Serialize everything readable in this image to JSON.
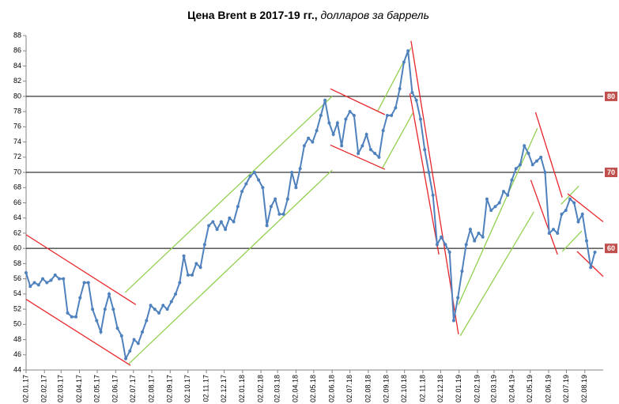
{
  "chart_data": {
    "type": "line",
    "title": "Цена Brent в 2017-19 гг.,",
    "subtitle": "долларов за баррель",
    "color": "#4f81bd",
    "markers": true,
    "x": [
      "02.01.17",
      "09.01.17",
      "16.01.17",
      "23.01.17",
      "30.01.17",
      "06.02.17",
      "13.02.17",
      "20.02.17",
      "27.02.17",
      "06.03.17",
      "13.03.17",
      "20.03.17",
      "27.03.17",
      "03.04.17",
      "10.04.17",
      "17.04.17",
      "24.04.17",
      "01.05.17",
      "08.05.17",
      "15.05.17",
      "22.05.17",
      "29.05.17",
      "05.06.17",
      "12.06.17",
      "19.06.17",
      "26.06.17",
      "03.07.17",
      "10.07.17",
      "17.07.17",
      "24.07.17",
      "31.07.17",
      "07.08.17",
      "14.08.17",
      "21.08.17",
      "28.08.17",
      "04.09.17",
      "11.09.17",
      "18.09.17",
      "25.09.17",
      "02.10.17",
      "09.10.17",
      "16.10.17",
      "23.10.17",
      "30.10.17",
      "06.11.17",
      "13.11.17",
      "20.11.17",
      "27.11.17",
      "04.12.17",
      "11.12.17",
      "18.12.17",
      "25.12.17",
      "01.01.18",
      "08.01.18",
      "15.01.18",
      "22.01.18",
      "29.01.18",
      "05.02.18",
      "12.02.18",
      "19.02.18",
      "26.02.18",
      "05.03.18",
      "12.03.18",
      "19.03.18",
      "26.03.18",
      "02.04.18",
      "09.04.18",
      "16.04.18",
      "23.04.18",
      "30.04.18",
      "07.05.18",
      "14.05.18",
      "21.05.18",
      "28.05.18",
      "04.06.18",
      "11.06.18",
      "18.06.18",
      "25.06.18",
      "02.07.18",
      "09.07.18",
      "16.07.18",
      "23.07.18",
      "30.07.18",
      "06.08.18",
      "13.08.18",
      "20.08.18",
      "27.08.18",
      "03.09.18",
      "10.09.18",
      "17.09.18",
      "24.09.18",
      "01.10.18",
      "08.10.18",
      "15.10.18",
      "22.10.18",
      "29.10.18",
      "05.11.18",
      "12.11.18",
      "19.11.18",
      "26.11.18",
      "03.12.18",
      "10.12.18",
      "17.12.18",
      "24.12.18",
      "31.12.18",
      "07.01.19",
      "14.01.19",
      "21.01.19",
      "28.01.19",
      "04.02.19",
      "11.02.19",
      "18.02.19",
      "25.02.19",
      "04.03.19",
      "11.03.19",
      "18.03.19",
      "25.03.19",
      "01.04.19",
      "08.04.19",
      "15.04.19",
      "22.04.19",
      "29.04.19",
      "06.05.19",
      "13.05.19",
      "20.05.19",
      "27.05.19",
      "03.06.19",
      "10.06.19",
      "17.06.19",
      "24.06.19",
      "01.07.19",
      "08.07.19",
      "15.07.19",
      "22.07.19",
      "29.07.19",
      "05.08.19",
      "12.08.19",
      "19.08.19"
    ],
    "values": [
      56.8,
      55.0,
      55.5,
      55.2,
      56.0,
      55.5,
      55.8,
      56.5,
      56.0,
      56.0,
      51.5,
      51.0,
      51.0,
      53.5,
      55.5,
      55.5,
      52.0,
      50.5,
      49.0,
      52.0,
      54.0,
      52.0,
      49.5,
      48.5,
      45.5,
      46.5,
      48.0,
      47.5,
      49.0,
      50.5,
      52.5,
      52.0,
      51.5,
      52.5,
      52.0,
      53.0,
      54.0,
      55.5,
      59.0,
      56.5,
      56.5,
      58.0,
      57.5,
      60.5,
      63.0,
      63.5,
      62.5,
      63.5,
      62.5,
      64.0,
      63.5,
      65.5,
      67.5,
      68.5,
      69.5,
      70.0,
      69.0,
      68.0,
      63.0,
      65.5,
      66.5,
      64.5,
      64.5,
      66.5,
      70.0,
      68.0,
      70.5,
      73.5,
      74.5,
      74.0,
      75.5,
      77.5,
      79.5,
      76.5,
      75.0,
      76.5,
      73.5,
      77.0,
      78.0,
      77.5,
      72.5,
      73.5,
      75.0,
      73.0,
      72.5,
      72.0,
      75.5,
      77.5,
      77.5,
      78.5,
      81.0,
      84.5,
      86.0,
      80.5,
      79.5,
      77.0,
      73.0,
      70.0,
      67.0,
      60.5,
      61.5,
      60.5,
      59.5,
      50.5,
      53.5,
      57.0,
      60.5,
      62.5,
      61.0,
      62.0,
      61.5,
      66.5,
      65.0,
      65.5,
      66.0,
      67.5,
      67.0,
      69.0,
      70.5,
      71.0,
      73.5,
      72.5,
      71.0,
      71.5,
      72.0,
      70.0,
      62.0,
      62.5,
      62.0,
      64.5,
      65.0,
      66.5,
      66.0,
      63.5,
      64.5,
      61.0,
      57.5,
      59.5
    ],
    "xlim": [
      "02.01.17",
      "02.09.19"
    ],
    "xticks": [
      "02.01.17",
      "02.02.17",
      "02.03.17",
      "02.04.17",
      "02.05.17",
      "02.06.17",
      "02.07.17",
      "02.08.17",
      "02.09.17",
      "02.10.17",
      "02.11.17",
      "02.12.17",
      "02.01.18",
      "02.02.18",
      "02.03.18",
      "02.04.18",
      "02.05.18",
      "02.06.18",
      "02.07.18",
      "02.08.18",
      "02.09.18",
      "02.10.18",
      "02.11.18",
      "02.12.18",
      "02.01.19",
      "02.02.19",
      "02.03.19",
      "02.04.19",
      "02.05.19",
      "02.06.19",
      "02.07.19",
      "02.08.19"
    ],
    "ylim": [
      44,
      88
    ],
    "yticks": [
      44,
      46,
      48,
      50,
      52,
      54,
      56,
      58,
      60,
      62,
      64,
      66,
      68,
      70,
      72,
      74,
      76,
      78,
      80,
      82,
      84,
      86,
      88
    ],
    "reference_lines": {
      "values": [
        60,
        70,
        80
      ],
      "color": "#000000",
      "label_color": "#c0504d"
    },
    "trend_lines": [
      {
        "color": "#e8252a",
        "x": [
          "02.01.17",
          "06.07.17"
        ],
        "y": [
          61.8,
          52.6
        ]
      },
      {
        "color": "#e8252a",
        "x": [
          "02.01.17",
          "27.06.17"
        ],
        "y": [
          53.3,
          44.6
        ]
      },
      {
        "color": "#92d050",
        "x": [
          "18.06.17",
          "02.06.18"
        ],
        "y": [
          54.2,
          80.0
        ]
      },
      {
        "color": "#92d050",
        "x": [
          "24.06.17",
          "02.06.18"
        ],
        "y": [
          44.8,
          70.3
        ]
      },
      {
        "color": "#e8252a",
        "x": [
          "30.05.18",
          "30.08.18"
        ],
        "y": [
          81.0,
          77.6
        ]
      },
      {
        "color": "#e8252a",
        "x": [
          "30.05.18",
          "30.08.18"
        ],
        "y": [
          73.6,
          70.4
        ]
      },
      {
        "color": "#92d050",
        "x": [
          "18.08.18",
          "13.10.18"
        ],
        "y": [
          78.1,
          86.4
        ]
      },
      {
        "color": "#92d050",
        "x": [
          "26.08.18",
          "16.10.18"
        ],
        "y": [
          70.6,
          77.8
        ]
      },
      {
        "color": "#e8252a",
        "x": [
          "13.10.18",
          "01.01.19"
        ],
        "y": [
          87.3,
          48.7
        ]
      },
      {
        "color": "#e8252a",
        "x": [
          "11.10.18",
          "29.11.18"
        ],
        "y": [
          80.4,
          59.2
        ]
      },
      {
        "color": "#92d050",
        "x": [
          "01.01.19",
          "14.05.19"
        ],
        "y": [
          52.6,
          75.8
        ]
      },
      {
        "color": "#92d050",
        "x": [
          "04.01.19",
          "08.05.19"
        ],
        "y": [
          48.5,
          64.8
        ]
      },
      {
        "color": "#e8252a",
        "x": [
          "11.05.19",
          "25.06.19"
        ],
        "y": [
          77.9,
          66.7
        ]
      },
      {
        "color": "#e8252a",
        "x": [
          "03.05.19",
          "17.06.19"
        ],
        "y": [
          69.0,
          59.2
        ]
      },
      {
        "color": "#92d050",
        "x": [
          "23.06.19",
          "23.07.19"
        ],
        "y": [
          65.8,
          68.2
        ]
      },
      {
        "color": "#92d050",
        "x": [
          "25.06.19",
          "28.07.19"
        ],
        "y": [
          59.6,
          62.3
        ]
      },
      {
        "color": "#e8252a",
        "x": [
          "04.07.19",
          "02.09.19"
        ],
        "y": [
          67.2,
          63.5
        ]
      },
      {
        "color": "#e8252a",
        "x": [
          "20.07.19",
          "02.09.19"
        ],
        "y": [
          59.6,
          56.3
        ]
      }
    ]
  }
}
